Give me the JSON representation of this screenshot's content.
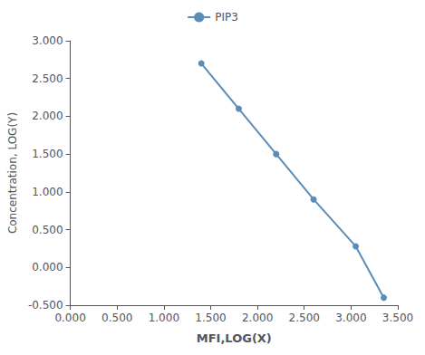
{
  "chart_data": {
    "type": "line",
    "x": [
      1.4,
      1.8,
      2.2,
      2.6,
      3.05,
      3.35
    ],
    "series": [
      {
        "name": "PIP3",
        "color": "#5b8db8",
        "marker": "circle",
        "values": [
          2.7,
          2.1,
          1.5,
          0.9,
          0.28,
          -0.4
        ]
      }
    ],
    "xlabel": "MFI,LOG(X)",
    "ylabel": "Concentration, LOG(Y)",
    "xlim": [
      0.0,
      3.5
    ],
    "ylim": [
      -0.5,
      3.0
    ],
    "xticks": [
      {
        "value": 0.0,
        "label": "0.000"
      },
      {
        "value": 0.5,
        "label": "0.500"
      },
      {
        "value": 1.0,
        "label": "1.000"
      },
      {
        "value": 1.5,
        "label": "1.500"
      },
      {
        "value": 2.0,
        "label": "2.000"
      },
      {
        "value": 2.5,
        "label": "2.500"
      },
      {
        "value": 3.0,
        "label": "3.000"
      },
      {
        "value": 3.5,
        "label": "3.500"
      }
    ],
    "yticks": [
      {
        "value": -0.5,
        "label": "-0.500"
      },
      {
        "value": 0.0,
        "label": "0.000"
      },
      {
        "value": 0.5,
        "label": "0.500"
      },
      {
        "value": 1.0,
        "label": "1.000"
      },
      {
        "value": 1.5,
        "label": "1.500"
      },
      {
        "value": 2.0,
        "label": "2.000"
      },
      {
        "value": 2.5,
        "label": "2.500"
      },
      {
        "value": 3.0,
        "label": "3.000"
      }
    ],
    "grid": false,
    "legend": "top"
  }
}
